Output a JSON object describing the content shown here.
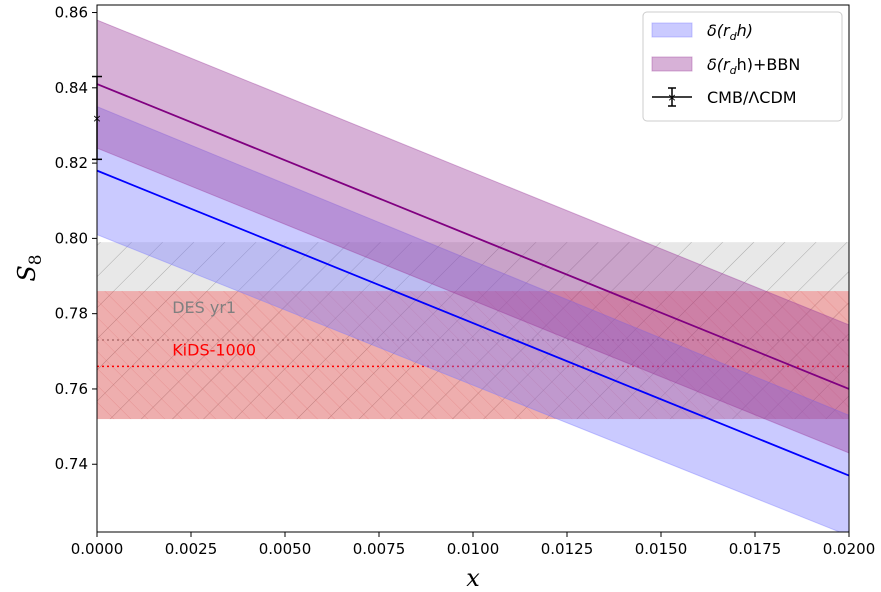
{
  "chart_data": {
    "type": "line",
    "xlabel": "x",
    "ylabel": "S",
    "ylabel_sub": "8",
    "xlim": [
      0.0,
      0.02
    ],
    "ylim": [
      0.722,
      0.862
    ],
    "xticks": [
      0.0,
      0.0025,
      0.005,
      0.0075,
      0.01,
      0.0125,
      0.015,
      0.0175,
      0.02
    ],
    "xtick_labels": [
      "0.0000",
      "0.0025",
      "0.0050",
      "0.0075",
      "0.0100",
      "0.0125",
      "0.0150",
      "0.0175",
      "0.0200"
    ],
    "yticks": [
      0.74,
      0.76,
      0.78,
      0.8,
      0.82,
      0.84,
      0.86
    ],
    "ytick_labels": [
      "0.74",
      "0.76",
      "0.78",
      "0.80",
      "0.82",
      "0.84",
      "0.86"
    ],
    "grid": false,
    "legend_position": "top-right",
    "series": [
      {
        "name": "δ(r_d h)",
        "legend_main": "δ(r",
        "legend_sub": "d",
        "legend_tail": "h)",
        "color": "#0000ff",
        "fill": "#7b7bff",
        "x": [
          0.0,
          0.02
        ],
        "center": [
          0.818,
          0.737
        ],
        "lower": [
          0.801,
          0.721
        ],
        "upper": [
          0.835,
          0.753
        ]
      },
      {
        "name": "δ(r_d h)+BBN",
        "legend_main": "δ(r",
        "legend_sub": "d",
        "legend_tail": "h)+BBN",
        "color": "#800080",
        "fill": "#9c3c9c",
        "x": [
          0.0,
          0.02
        ],
        "center": [
          0.841,
          0.76
        ],
        "lower": [
          0.824,
          0.743
        ],
        "upper": [
          0.858,
          0.777
        ]
      }
    ],
    "point": {
      "name": "CMB/ΛCDM",
      "x": 0.0,
      "y": 0.832,
      "yerr": 0.011,
      "color": "#000000"
    },
    "bands": [
      {
        "label": "DES yr1",
        "color": "#808080",
        "center": 0.773,
        "lower": 0.752,
        "upper": 0.799
      },
      {
        "label": "KiDS-1000",
        "color": "#ff0000",
        "center": 0.766,
        "lower": 0.752,
        "upper": 0.786
      }
    ]
  }
}
